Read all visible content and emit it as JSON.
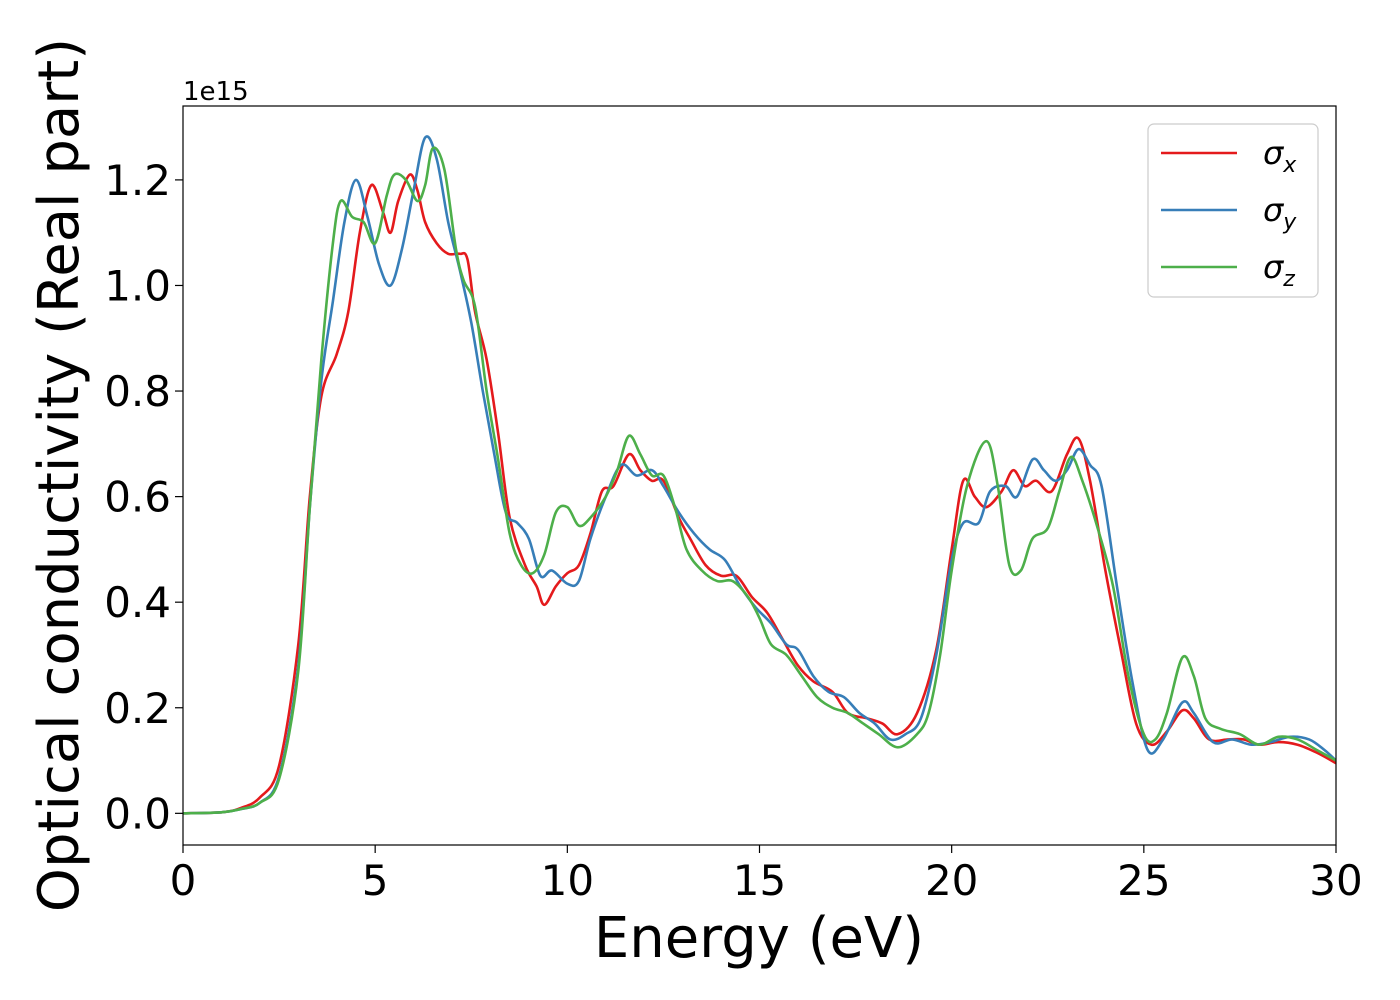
{
  "chart_data": {
    "type": "line",
    "xlabel": "Energy (eV)",
    "ylabel": "Optical conductivity (Real part)",
    "y_offset_text": "1e15",
    "xlim": [
      0,
      30
    ],
    "ylim": [
      -0.06,
      1.34
    ],
    "x_ticks": [
      0,
      5,
      10,
      15,
      20,
      25,
      30
    ],
    "x_tick_labels": [
      "0",
      "5",
      "10",
      "15",
      "20",
      "25",
      "30"
    ],
    "y_ticks": [
      0.0,
      0.2,
      0.4,
      0.6,
      0.8,
      1.0,
      1.2
    ],
    "y_tick_labels": [
      "0.0",
      "0.2",
      "0.4",
      "0.6",
      "0.8",
      "1.0",
      "1.2"
    ],
    "grid": false,
    "legend_position": "top-right",
    "series": [
      {
        "name": "σx",
        "label_base": "σ",
        "label_sub": "x",
        "color": "#e41a1c",
        "points": [
          [
            0,
            0
          ],
          [
            1,
            0.002
          ],
          [
            1.5,
            0.01
          ],
          [
            2,
            0.03
          ],
          [
            2.5,
            0.09
          ],
          [
            3,
            0.32
          ],
          [
            3.3,
            0.6
          ],
          [
            3.6,
            0.79
          ],
          [
            4,
            0.87
          ],
          [
            4.3,
            0.95
          ],
          [
            4.6,
            1.1
          ],
          [
            4.9,
            1.19
          ],
          [
            5.2,
            1.14
          ],
          [
            5.4,
            1.1
          ],
          [
            5.6,
            1.16
          ],
          [
            5.9,
            1.21
          ],
          [
            6.1,
            1.18
          ],
          [
            6.3,
            1.12
          ],
          [
            6.6,
            1.08
          ],
          [
            6.9,
            1.06
          ],
          [
            7.2,
            1.06
          ],
          [
            7.4,
            1.05
          ],
          [
            7.6,
            0.95
          ],
          [
            7.9,
            0.86
          ],
          [
            8.2,
            0.72
          ],
          [
            8.5,
            0.56
          ],
          [
            8.9,
            0.47
          ],
          [
            9.2,
            0.43
          ],
          [
            9.4,
            0.395
          ],
          [
            9.7,
            0.43
          ],
          [
            10,
            0.455
          ],
          [
            10.3,
            0.47
          ],
          [
            10.6,
            0.53
          ],
          [
            10.9,
            0.61
          ],
          [
            11.2,
            0.62
          ],
          [
            11.6,
            0.68
          ],
          [
            11.9,
            0.65
          ],
          [
            12.2,
            0.63
          ],
          [
            12.5,
            0.63
          ],
          [
            12.9,
            0.56
          ],
          [
            13.2,
            0.52
          ],
          [
            13.6,
            0.47
          ],
          [
            14,
            0.45
          ],
          [
            14.4,
            0.45
          ],
          [
            14.8,
            0.41
          ],
          [
            15.2,
            0.38
          ],
          [
            15.6,
            0.33
          ],
          [
            16,
            0.28
          ],
          [
            16.4,
            0.25
          ],
          [
            16.9,
            0.23
          ],
          [
            17.3,
            0.19
          ],
          [
            17.8,
            0.18
          ],
          [
            18.2,
            0.17
          ],
          [
            18.6,
            0.15
          ],
          [
            19.1,
            0.19
          ],
          [
            19.6,
            0.31
          ],
          [
            20,
            0.5
          ],
          [
            20.3,
            0.63
          ],
          [
            20.6,
            0.6
          ],
          [
            20.9,
            0.58
          ],
          [
            21.3,
            0.61
          ],
          [
            21.6,
            0.65
          ],
          [
            21.9,
            0.62
          ],
          [
            22.2,
            0.63
          ],
          [
            22.6,
            0.61
          ],
          [
            23,
            0.68
          ],
          [
            23.3,
            0.71
          ],
          [
            23.6,
            0.63
          ],
          [
            24,
            0.46
          ],
          [
            24.4,
            0.31
          ],
          [
            24.8,
            0.17
          ],
          [
            25.2,
            0.13
          ],
          [
            25.6,
            0.155
          ],
          [
            26,
            0.195
          ],
          [
            26.3,
            0.18
          ],
          [
            26.7,
            0.14
          ],
          [
            27.2,
            0.14
          ],
          [
            27.6,
            0.14
          ],
          [
            28,
            0.13
          ],
          [
            28.5,
            0.135
          ],
          [
            29,
            0.13
          ],
          [
            29.5,
            0.115
          ],
          [
            30,
            0.095
          ]
        ]
      },
      {
        "name": "σy",
        "label_base": "σ",
        "label_sub": "y",
        "color": "#377eb8",
        "points": [
          [
            0,
            0
          ],
          [
            1,
            0.002
          ],
          [
            1.5,
            0.008
          ],
          [
            2,
            0.02
          ],
          [
            2.5,
            0.07
          ],
          [
            3,
            0.28
          ],
          [
            3.3,
            0.58
          ],
          [
            3.6,
            0.82
          ],
          [
            3.9,
            0.97
          ],
          [
            4.2,
            1.12
          ],
          [
            4.5,
            1.2
          ],
          [
            4.8,
            1.13
          ],
          [
            5.1,
            1.04
          ],
          [
            5.4,
            1.0
          ],
          [
            5.7,
            1.07
          ],
          [
            6,
            1.18
          ],
          [
            6.3,
            1.28
          ],
          [
            6.6,
            1.24
          ],
          [
            6.9,
            1.12
          ],
          [
            7.2,
            1.03
          ],
          [
            7.5,
            0.93
          ],
          [
            7.8,
            0.8
          ],
          [
            8.1,
            0.68
          ],
          [
            8.4,
            0.57
          ],
          [
            8.7,
            0.55
          ],
          [
            9,
            0.52
          ],
          [
            9.3,
            0.45
          ],
          [
            9.6,
            0.46
          ],
          [
            10,
            0.435
          ],
          [
            10.3,
            0.44
          ],
          [
            10.6,
            0.52
          ],
          [
            11,
            0.6
          ],
          [
            11.4,
            0.66
          ],
          [
            11.8,
            0.64
          ],
          [
            12.2,
            0.65
          ],
          [
            12.5,
            0.62
          ],
          [
            12.9,
            0.57
          ],
          [
            13.3,
            0.53
          ],
          [
            13.7,
            0.5
          ],
          [
            14.1,
            0.48
          ],
          [
            14.5,
            0.43
          ],
          [
            14.9,
            0.39
          ],
          [
            15.3,
            0.36
          ],
          [
            15.7,
            0.32
          ],
          [
            16,
            0.31
          ],
          [
            16.4,
            0.26
          ],
          [
            16.8,
            0.23
          ],
          [
            17.2,
            0.22
          ],
          [
            17.6,
            0.19
          ],
          [
            18,
            0.17
          ],
          [
            18.4,
            0.14
          ],
          [
            18.8,
            0.15
          ],
          [
            19.2,
            0.18
          ],
          [
            19.6,
            0.3
          ],
          [
            20,
            0.48
          ],
          [
            20.3,
            0.55
          ],
          [
            20.7,
            0.55
          ],
          [
            21,
            0.61
          ],
          [
            21.4,
            0.62
          ],
          [
            21.7,
            0.6
          ],
          [
            22.1,
            0.67
          ],
          [
            22.4,
            0.65
          ],
          [
            22.7,
            0.63
          ],
          [
            23,
            0.65
          ],
          [
            23.3,
            0.69
          ],
          [
            23.6,
            0.66
          ],
          [
            23.9,
            0.62
          ],
          [
            24.3,
            0.43
          ],
          [
            24.7,
            0.25
          ],
          [
            25.1,
            0.12
          ],
          [
            25.5,
            0.14
          ],
          [
            26,
            0.21
          ],
          [
            26.3,
            0.19
          ],
          [
            26.8,
            0.135
          ],
          [
            27.3,
            0.14
          ],
          [
            27.8,
            0.13
          ],
          [
            28.3,
            0.135
          ],
          [
            28.8,
            0.145
          ],
          [
            29.3,
            0.14
          ],
          [
            29.7,
            0.12
          ],
          [
            30,
            0.1
          ]
        ]
      },
      {
        "name": "σz",
        "label_base": "σ",
        "label_sub": "z",
        "color": "#4daf4a",
        "points": [
          [
            0,
            0
          ],
          [
            1,
            0.002
          ],
          [
            1.5,
            0.008
          ],
          [
            2,
            0.02
          ],
          [
            2.5,
            0.065
          ],
          [
            3,
            0.27
          ],
          [
            3.3,
            0.58
          ],
          [
            3.6,
            0.86
          ],
          [
            3.9,
            1.08
          ],
          [
            4.1,
            1.16
          ],
          [
            4.4,
            1.13
          ],
          [
            4.7,
            1.12
          ],
          [
            5,
            1.08
          ],
          [
            5.3,
            1.17
          ],
          [
            5.5,
            1.21
          ],
          [
            5.8,
            1.2
          ],
          [
            6.1,
            1.16
          ],
          [
            6.3,
            1.19
          ],
          [
            6.5,
            1.26
          ],
          [
            6.8,
            1.22
          ],
          [
            7.1,
            1.07
          ],
          [
            7.3,
            1.01
          ],
          [
            7.6,
            0.96
          ],
          [
            7.9,
            0.8
          ],
          [
            8.2,
            0.67
          ],
          [
            8.5,
            0.53
          ],
          [
            8.8,
            0.47
          ],
          [
            9.1,
            0.455
          ],
          [
            9.4,
            0.49
          ],
          [
            9.7,
            0.57
          ],
          [
            10,
            0.58
          ],
          [
            10.3,
            0.545
          ],
          [
            10.6,
            0.56
          ],
          [
            11,
            0.6
          ],
          [
            11.3,
            0.65
          ],
          [
            11.6,
            0.715
          ],
          [
            11.9,
            0.68
          ],
          [
            12.2,
            0.64
          ],
          [
            12.5,
            0.64
          ],
          [
            12.8,
            0.58
          ],
          [
            13.1,
            0.5
          ],
          [
            13.5,
            0.46
          ],
          [
            13.9,
            0.44
          ],
          [
            14.3,
            0.44
          ],
          [
            14.7,
            0.41
          ],
          [
            15,
            0.37
          ],
          [
            15.3,
            0.32
          ],
          [
            15.7,
            0.3
          ],
          [
            16.1,
            0.26
          ],
          [
            16.5,
            0.22
          ],
          [
            16.9,
            0.2
          ],
          [
            17.3,
            0.19
          ],
          [
            17.7,
            0.17
          ],
          [
            18.1,
            0.15
          ],
          [
            18.6,
            0.125
          ],
          [
            19.1,
            0.15
          ],
          [
            19.4,
            0.19
          ],
          [
            19.7,
            0.3
          ],
          [
            20,
            0.46
          ],
          [
            20.4,
            0.62
          ],
          [
            20.9,
            0.705
          ],
          [
            21.2,
            0.62
          ],
          [
            21.5,
            0.47
          ],
          [
            21.8,
            0.46
          ],
          [
            22.1,
            0.52
          ],
          [
            22.5,
            0.54
          ],
          [
            22.8,
            0.61
          ],
          [
            23.1,
            0.675
          ],
          [
            23.4,
            0.63
          ],
          [
            23.8,
            0.54
          ],
          [
            24.2,
            0.43
          ],
          [
            24.6,
            0.26
          ],
          [
            25,
            0.15
          ],
          [
            25.3,
            0.14
          ],
          [
            25.6,
            0.19
          ],
          [
            26,
            0.295
          ],
          [
            26.3,
            0.26
          ],
          [
            26.6,
            0.18
          ],
          [
            27,
            0.16
          ],
          [
            27.5,
            0.15
          ],
          [
            28,
            0.13
          ],
          [
            28.5,
            0.145
          ],
          [
            29,
            0.14
          ],
          [
            29.5,
            0.12
          ],
          [
            30,
            0.1
          ]
        ]
      }
    ]
  }
}
